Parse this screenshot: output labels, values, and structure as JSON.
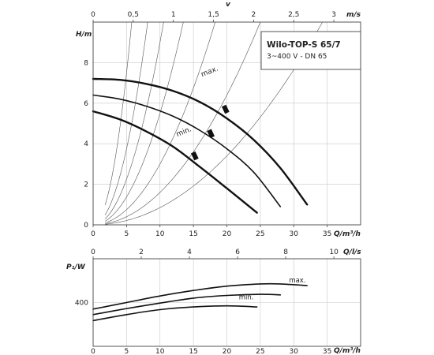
{
  "chart_data": [
    {
      "type": "line",
      "title": "Wilo-TOP-S 65/7",
      "subtitle": "3~400 V - DN 65",
      "xlabel": "Q/m³/h",
      "ylabel": "H/m",
      "x2label": "v",
      "x2unit": "m/s",
      "xlim": [
        0,
        40
      ],
      "ylim": [
        0,
        10
      ],
      "x_ticks": [
        "0",
        "5",
        "10",
        "15",
        "20",
        "25",
        "30",
        "35"
      ],
      "y_ticks": [
        "0",
        "2",
        "4",
        "6",
        "8"
      ],
      "x2_ticks": [
        "0",
        "0,5",
        "1",
        "1,5",
        "2",
        "2,5",
        "3"
      ],
      "x2_factor": 12,
      "grid": true,
      "series": [
        {
          "name": "max.",
          "label_at": [
            16.3,
            7.3
          ],
          "label_angle": -22,
          "width": 2.4,
          "x": [
            0,
            4,
            8,
            12,
            16,
            20,
            24,
            28,
            32
          ],
          "y": [
            7.2,
            7.15,
            6.95,
            6.6,
            6.05,
            5.25,
            4.2,
            2.8,
            1.0
          ]
        },
        {
          "name": "",
          "label_at": null,
          "label_angle": 0,
          "width": 1.6,
          "x": [
            0,
            4,
            8,
            12,
            16,
            20,
            24,
            28
          ],
          "y": [
            6.4,
            6.2,
            5.85,
            5.35,
            4.65,
            3.75,
            2.6,
            0.9
          ]
        },
        {
          "name": "min.",
          "label_at": [
            12.6,
            4.35
          ],
          "label_angle": -22,
          "width": 2.4,
          "x": [
            0,
            4,
            8,
            12,
            16,
            20,
            24.5
          ],
          "y": [
            5.6,
            5.2,
            4.6,
            3.85,
            2.85,
            1.8,
            0.6
          ]
        }
      ],
      "markers": [
        {
          "x": 19.8,
          "y": 5.7
        },
        {
          "x": 17.6,
          "y": 4.5
        },
        {
          "x": 15.2,
          "y": 3.4
        }
      ],
      "system_curves": [
        0.3,
        0.15,
        0.09,
        0.055,
        0.03,
        0.016,
        0.0085
      ],
      "system_curve_xmin": 1.8
    },
    {
      "type": "line",
      "xlabel": "Q/m³/h",
      "ylabel": "P₁/W",
      "x2label": "Q/l/s",
      "xlim": [
        0,
        40
      ],
      "ylim": [
        0,
        800
      ],
      "x_ticks": [
        "0",
        "5",
        "10",
        "15",
        "20",
        "25",
        "30",
        "35"
      ],
      "y_ticks": [
        "400"
      ],
      "y_tick_values": [
        400
      ],
      "x2_ticks": [
        "0",
        "2",
        "4",
        "6",
        "8",
        "10"
      ],
      "x2_factor": 3.6,
      "grid": true,
      "series": [
        {
          "name": "max.",
          "label_at": [
            29.3,
            585
          ],
          "width": 1.6,
          "x": [
            0,
            5,
            10,
            15,
            20,
            25,
            28,
            32
          ],
          "y": [
            340,
            400,
            460,
            510,
            550,
            570,
            570,
            555
          ]
        },
        {
          "name": "min.",
          "label_at": [
            21.8,
            430
          ],
          "width": 1.6,
          "x": [
            0,
            5,
            10,
            15,
            20,
            24.5
          ],
          "y": [
            235,
            290,
            335,
            360,
            370,
            360
          ]
        },
        {
          "name": "",
          "label_at": null,
          "width": 1.6,
          "x": [
            0,
            5,
            10,
            15,
            20,
            25,
            28
          ],
          "y": [
            290,
            345,
            395,
            440,
            465,
            475,
            470
          ]
        }
      ]
    }
  ]
}
